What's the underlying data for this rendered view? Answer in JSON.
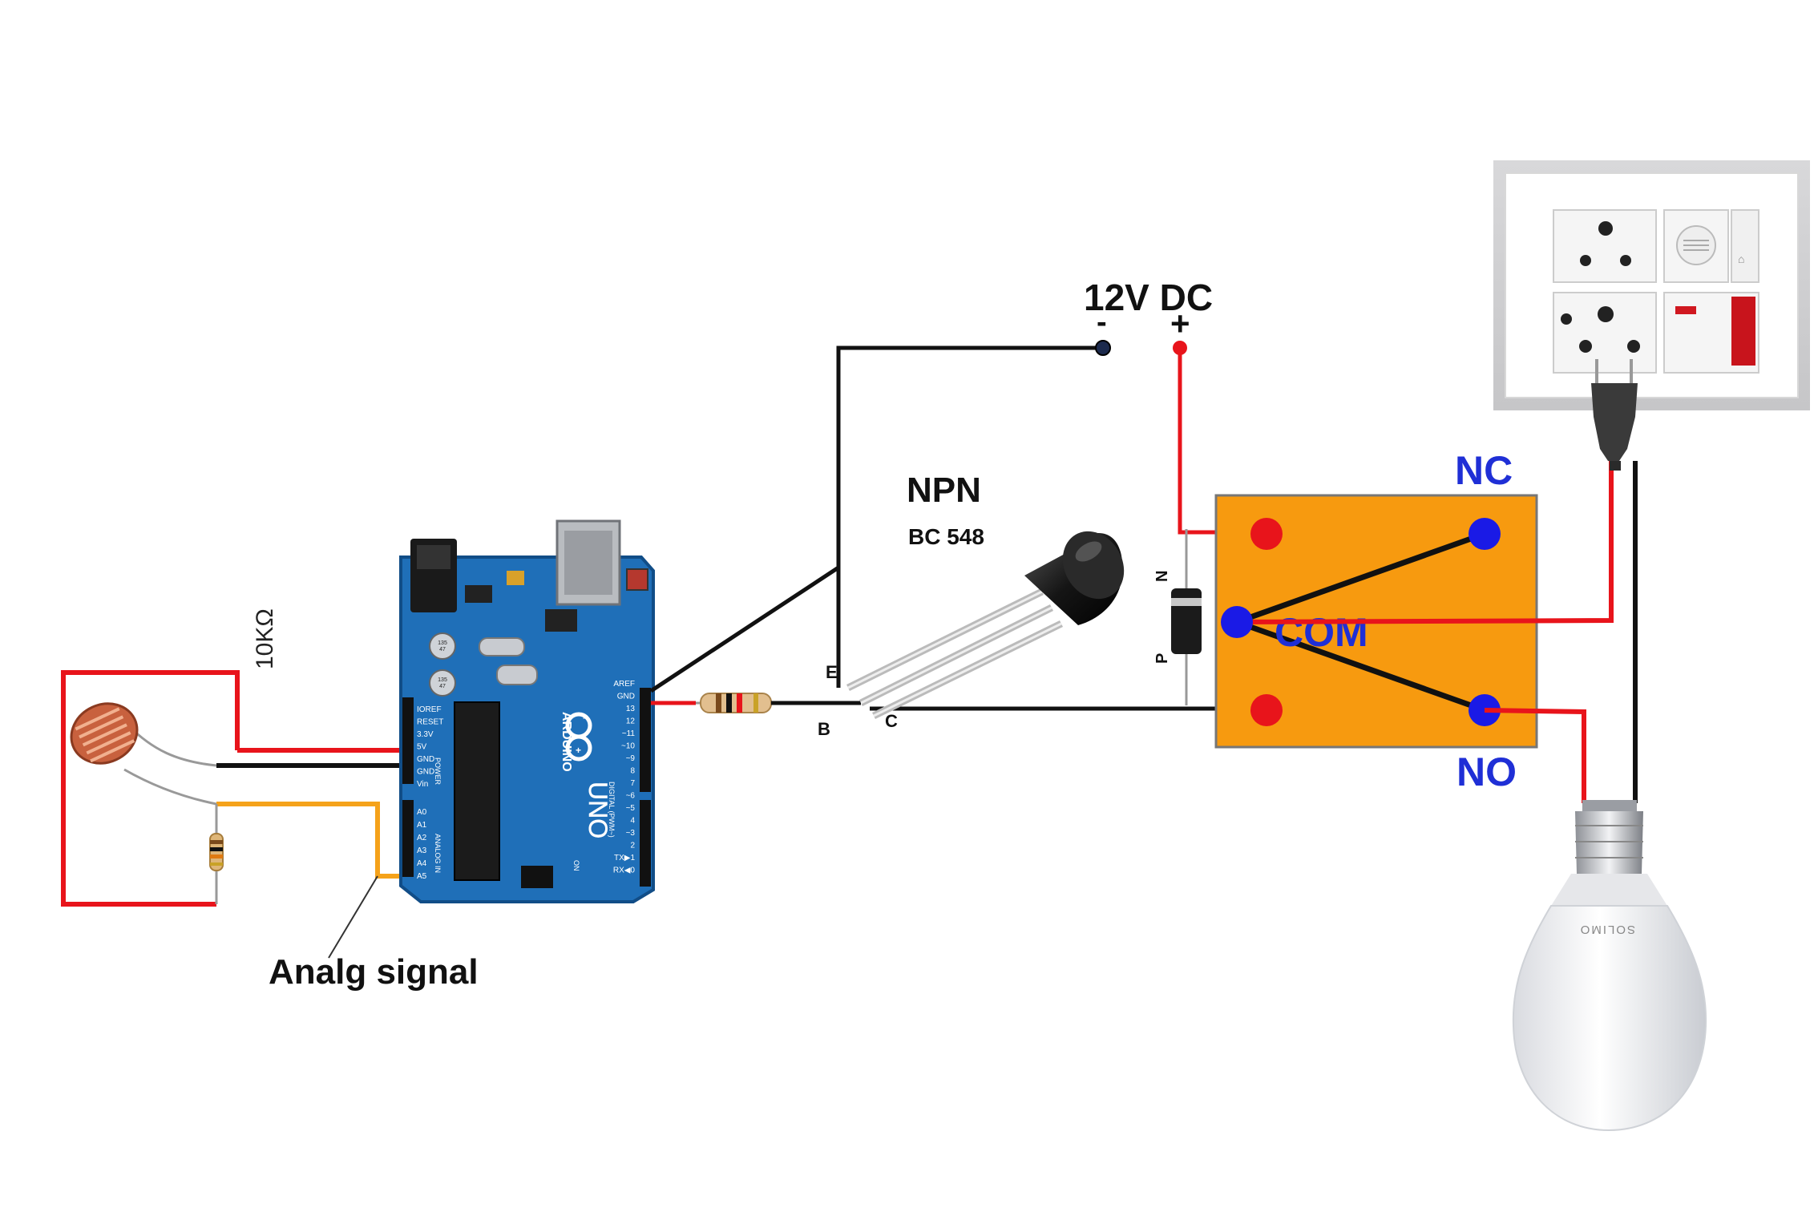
{
  "labels": {
    "resistor_value": "10KΩ",
    "analog_signal": "Analg signal",
    "supply": "12V DC",
    "supply_minus": "-",
    "supply_plus": "+",
    "transistor_type": "NPN",
    "transistor_model": "BC 548",
    "pin_e": "E",
    "pin_b": "B",
    "pin_c": "C",
    "diode_n": "N",
    "diode_p": "P",
    "relay_nc": "NC",
    "relay_com": "COM",
    "relay_no": "NO",
    "bulb_brand": "SOLIMO"
  },
  "arduino": {
    "brand": "ARDUINO",
    "model": "UNO",
    "header_left": [
      "IOREF",
      "RESET",
      "3.3V",
      "5V",
      "GND",
      "GND",
      "Vin"
    ],
    "analog_pins": [
      "A0",
      "A1",
      "A2",
      "A3",
      "A4",
      "A5"
    ],
    "power_label": "POWER",
    "analog_label": "ANALOG IN",
    "digital_pins": [
      "AREF",
      "GND",
      "13",
      "12",
      "~11",
      "~10",
      "~9",
      "8",
      "7",
      "~6",
      "~5",
      "4",
      "~3",
      "2",
      "TX▶1",
      "RX◀0"
    ],
    "digital_label": "DIGITAL (PWM~)",
    "on_label": "ON",
    "cap_labels": [
      "135\n47\n16E",
      "135\n47\n16E"
    ]
  },
  "colors": {
    "wire_red": "#e8141b",
    "wire_black": "#111111",
    "wire_orange": "#f5a21a",
    "relay_body": "#f79a0f",
    "terminal_red": "#e8141b",
    "terminal_blue": "#1a1ae6",
    "board_blue": "#1f6fb8",
    "label_blue": "#1f2fd6"
  }
}
